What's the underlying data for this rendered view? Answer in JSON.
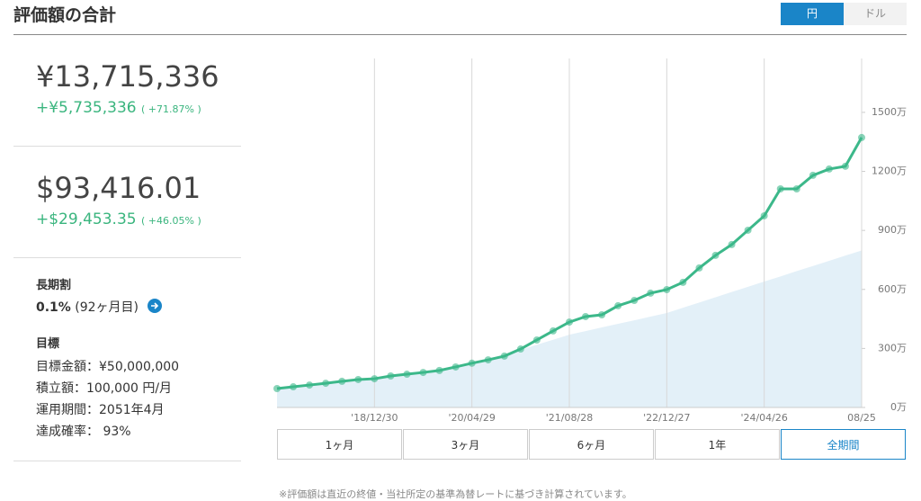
{
  "header": {
    "title": "評価額の合計",
    "currency_buttons": [
      "円",
      "ドル"
    ]
  },
  "summary": {
    "jpy_total": "¥13,715,336",
    "jpy_gain": "+¥5,735,336",
    "jpy_pct": "( +71.87% )",
    "usd_total": "$93,416.01",
    "usd_gain": "+$29,453.35",
    "usd_pct": "( +46.05% )"
  },
  "discount": {
    "title": "長期割",
    "rate": "0.1%",
    "months": "(92ヶ月目)"
  },
  "goal": {
    "title": "目標",
    "lines": [
      "目標金額：¥50,000,000",
      "積立額：100,000 円/月",
      "運用期間：2051年4月",
      "達成確率： 93%"
    ]
  },
  "periods": [
    "1ヶ月",
    "3ヶ月",
    "6ヶ月",
    "1年",
    "全期間"
  ],
  "note": "※評価額は直近の終値・当社所定の基準為替レートに基づき計算されています。",
  "chart_data": {
    "type": "line",
    "categories": [
      null,
      null,
      null,
      null,
      null,
      null,
      "'18/12/30",
      null,
      null,
      null,
      null,
      null,
      "'20/04/29",
      null,
      null,
      null,
      null,
      null,
      "'21/08/28",
      null,
      null,
      null,
      null,
      null,
      "'22/12/27",
      null,
      null,
      null,
      null,
      null,
      "'24/04/26",
      null,
      null,
      null,
      null,
      null,
      "08/25"
    ],
    "series": [
      {
        "color": "#3cb88a",
        "values": [
          96,
          105,
          114,
          123,
          133,
          142,
          146,
          160,
          169,
          178,
          188,
          206,
          225,
          242,
          261,
          297,
          343,
          389,
          434,
          462,
          471,
          517,
          544,
          581,
          599,
          636,
          709,
          773,
          828,
          901,
          974,
          1111,
          1111,
          1180,
          1212,
          1226,
          1372
        ]
      },
      {
        "color": "#e3f0f8",
        "values": [
          90,
          100,
          110,
          120,
          130,
          140,
          150,
          161,
          172,
          183,
          194,
          205,
          216,
          242,
          268,
          293,
          319,
          344,
          370,
          388,
          407,
          425,
          443,
          462,
          480,
          507,
          533,
          560,
          587,
          613,
          640,
          666,
          693,
          719,
          745,
          772,
          798
        ]
      }
    ],
    "ylim": [
      0,
      1774
    ],
    "yticks": [
      {
        "value": 0,
        "label": "0万"
      },
      {
        "value": 300,
        "label": "300万"
      },
      {
        "value": 600,
        "label": "600万"
      },
      {
        "value": 900,
        "label": "900万"
      },
      {
        "value": 1200,
        "label": "1200万"
      },
      {
        "value": 1500,
        "label": "1500万"
      }
    ],
    "grid": true
  }
}
